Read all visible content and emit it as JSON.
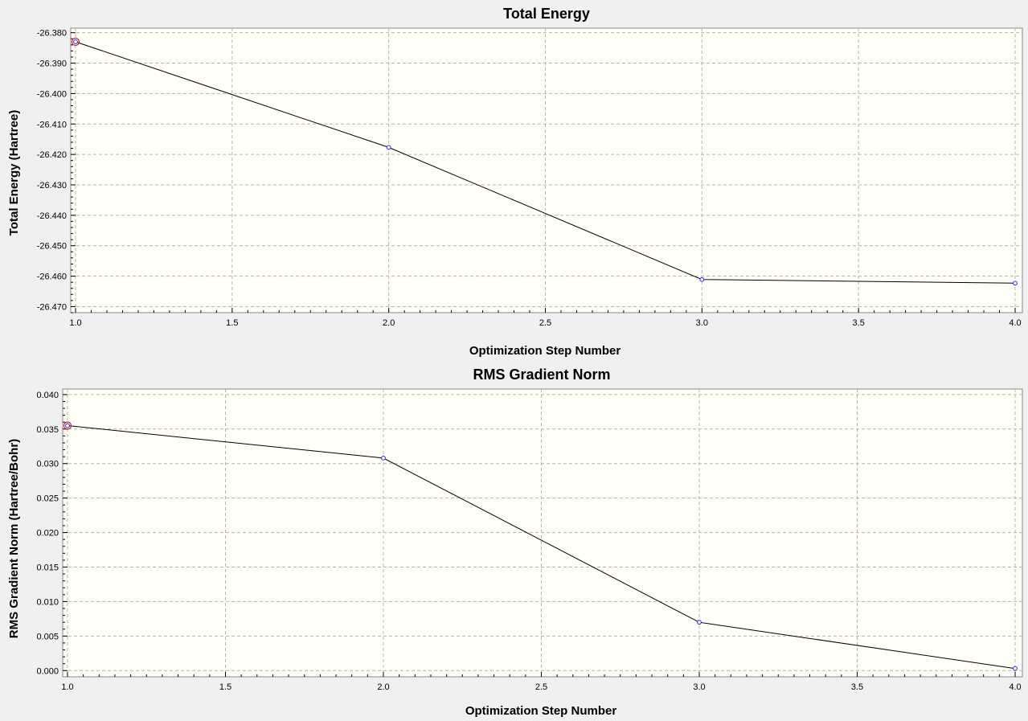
{
  "colors": {
    "background": "#f0f0f0",
    "plot_area": "#fffff8",
    "line": "#000000",
    "marker": "#2a2aff",
    "selected_marker": "#d0202a",
    "grid": "#b4b4b4"
  },
  "chart_data": [
    {
      "type": "line",
      "title": "Total Energy",
      "xlabel": "Optimization Step Number",
      "ylabel": "Total Energy (Hartree)",
      "x": [
        1,
        2,
        3,
        4
      ],
      "series": [
        {
          "values": [
            -26.383,
            -26.4177,
            -26.4611,
            -26.4623
          ]
        }
      ],
      "xlim": [
        1.0,
        4.0
      ],
      "ylim": [
        -26.472,
        -26.3785
      ],
      "xticks": [
        "1.0",
        "1.5",
        "2.0",
        "2.5",
        "3.0",
        "3.5",
        "4.0"
      ],
      "yticks": [
        "-26.380",
        "-26.390",
        "-26.400",
        "-26.410",
        "-26.420",
        "-26.430",
        "-26.440",
        "-26.450",
        "-26.460",
        "-26.470"
      ],
      "grid": true,
      "selected_point": 0
    },
    {
      "type": "line",
      "title": "RMS Gradient Norm",
      "xlabel": "Optimization Step Number",
      "ylabel": "RMS Gradient Norm (Hartree/Bohr)",
      "x": [
        1,
        2,
        3,
        4
      ],
      "series": [
        {
          "values": [
            0.0355,
            0.0308,
            0.007,
            0.0003
          ]
        }
      ],
      "xlim": [
        1.0,
        4.0
      ],
      "ylim": [
        -0.0009,
        0.0408
      ],
      "xticks": [
        "1.0",
        "1.5",
        "2.0",
        "2.5",
        "3.0",
        "3.5",
        "4.0"
      ],
      "yticks": [
        "0.000",
        "0.005",
        "0.010",
        "0.015",
        "0.020",
        "0.025",
        "0.030",
        "0.035",
        "0.040"
      ],
      "grid": true,
      "selected_point": 0
    }
  ]
}
